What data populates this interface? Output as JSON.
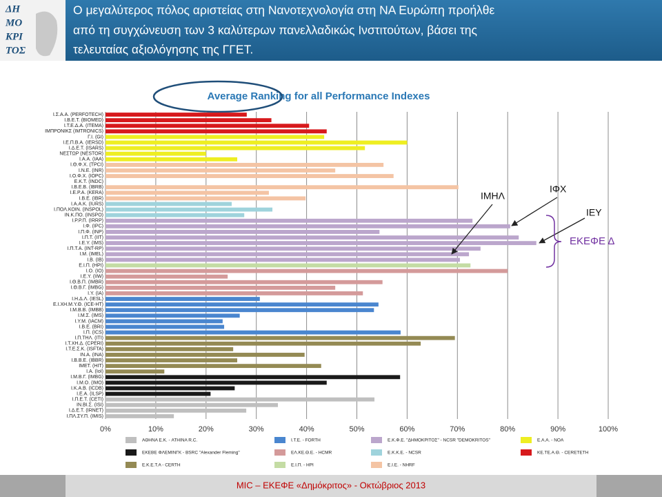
{
  "header": {
    "logo": [
      "ΔΗ",
      "ΜΟ",
      "ΚΡΙ",
      "ΤΟΣ"
    ],
    "title": [
      "Ο μεγαλύτερος πόλος αριστείας στη Νανοτεχνολογία στη ΝΑ Ευρώπη προήλθε",
      "από τη συγχώνευση των 3 καλύτερων πανελλαδικώς Ινστιτούτων, βάσει της",
      "τελευταίας αξιολόγησης της ΓΓΕΤ."
    ]
  },
  "chart_data": {
    "type": "bar",
    "orientation": "horizontal",
    "title": "Average Ranking for all Performance Indexes",
    "xlim": [
      0,
      100
    ],
    "xticks": [
      {
        "value": 0,
        "label": "0%"
      },
      {
        "value": 10,
        "label": "10%"
      },
      {
        "value": 20,
        "label": "20%"
      },
      {
        "value": 30,
        "label": "30%"
      },
      {
        "value": 40,
        "label": "40%"
      },
      {
        "value": 50,
        "label": "50%"
      },
      {
        "value": 60,
        "label": "60%"
      },
      {
        "value": 70,
        "label": "70%"
      },
      {
        "value": 80,
        "label": "80%"
      },
      {
        "value": 90,
        "label": "90%"
      },
      {
        "value": 100,
        "label": "100%"
      }
    ],
    "grid": true,
    "series": [
      {
        "name": "ΚΕ.ΤΕ.Α.Θ. - CERETETH",
        "color": "#d7191c",
        "categories": [
          "Ι.Σ.Α.Α. (PERFOTECH)",
          "Ι.Β.Ε.Τ. (BIOMED)",
          "Ι.Τ.Ε.Δ.Α. (ITEMA)",
          "ΙΜΠΡΟΝΙΚΣ (IMTRONICS)"
        ],
        "values": [
          28.1,
          33,
          40.5,
          44
        ]
      },
      {
        "name": "Ε.Α.Α. - NOA",
        "color": "#eeee22",
        "categories": [
          "Γ.Ι. (GI)",
          "Ι.Ε.Π.Β.Α. (IERSD)",
          "Ι.Δ.Ε.Τ. (ISARS)",
          "ΝΕΣΤΩΡ (NESTOR)",
          "Ι.Α.Α. (IAA)"
        ],
        "values": [
          43.5,
          60,
          51.6,
          20,
          26.2
        ]
      },
      {
        "name": "Ε.Ι.Ε. - NHRF",
        "color": "#f4c4a4",
        "categories": [
          "Ι.Θ.Φ.Χ. (TPCI)",
          "Ι.Ν.Ε. (INR)",
          "Ι.Ο.Φ.Χ. (IOPC)",
          "Ε.Κ.Τ. (INDC)",
          "Ι.Β.Ε.Β. (IBRB)",
          "Ι.Ε.Ρ.Α. (KERA)",
          "Ι.Β.Ε. (IBR)"
        ],
        "values": [
          55.3,
          45.7,
          57.3,
          0,
          70.2,
          32.5,
          39.8
        ]
      },
      {
        "name": "Ε.Κ.Κ.Ε. - NCSR",
        "color": "#9fd3dc",
        "categories": [
          "Ι.Α.Α.Κ. (IURS)",
          "Ι.ΠΟΛ.ΚΟΙΝ. (INSPOL)",
          "ΙΝ.Κ.ΠΟ. (INSPO)"
        ],
        "values": [
          25.1,
          33.2,
          27.6
        ]
      },
      {
        "name": "Ε.Κ.Φ.Ε. \"ΔΗΜΟΚΡΙΤΟΣ\" - NCSR \"DEMOKRITOS\"",
        "color": "#bba6cc",
        "categories": [
          "Ι.Ρ.Ρ.Π. (IRRP)",
          "Ι.Φ. (IPC)",
          "Ι.Π.Φ. (INP)",
          "Ι.Π.Τ. (IIT)",
          "Ι.Ε.Υ. (IMS)",
          "Ι.Π.Τ.Α. (INT-RP)",
          "Ι.Μ. (IMEL)",
          "Ι.Β. (IB)"
        ],
        "values": [
          73,
          80.5,
          54.5,
          82.2,
          85.7,
          74.6,
          72.3,
          70.5
        ]
      },
      {
        "name": "Ε.Ι.Π. - HPI",
        "color": "#c4dca4",
        "categories": [
          "Ε.Ι.Π. (HPI)"
        ],
        "values": [
          72.6
        ]
      },
      {
        "name": "ΕΛ.ΚΕ.Θ.Ε. - HCMR",
        "color": "#d49a9a",
        "categories": [
          "Ι.Ο. (IO)",
          "Ι.Ε.Υ. (IIW)",
          "Ι.Θ.Β.Π. (IMBR)",
          "Ι.Θ.Β.Γ. (IMBG)",
          "Ι.Υ. (IA)"
        ],
        "values": [
          80,
          24.3,
          55.1,
          45.7,
          51.2
        ]
      },
      {
        "name": "Ι.Τ.Ε. - FORTH",
        "color": "#4a86cf",
        "categories": [
          "Ι.Η.Δ.Λ. (IESL)",
          "Ε.Ι.ΧΗ.Μ.Υ.Θ. (ICE-HT)",
          "Ι.Μ.Β.Β. (IMBB)",
          "Ι.Μ.Σ. (IMS)",
          "Ι.Υ.Μ. (IACM)",
          "Ι.Β.Ε. (BRI)",
          "Ι.Π. (ICS)"
        ],
        "values": [
          30.7,
          54.3,
          53.4,
          26.7,
          23.3,
          23.6,
          58.7
        ]
      },
      {
        "name": "Ε.Κ.Ε.Τ.Α - CERTH",
        "color": "#948a54",
        "categories": [
          "Ι.Π.ΤΗΛ. (ITI)",
          "Ι.Τ.ΧΗ.Δ. (CPERI)",
          "Ι.Τ.Ε.Σ.Κ. (ISFTA)",
          "ΙΝ.Α. (INA)",
          "Ι.Β.Β.Ε. (IBBR)",
          "ΙΜΕΤ. (HIT)",
          "Ι.Α. (IoI)"
        ],
        "values": [
          69.5,
          62.7,
          25.4,
          39.6,
          26.2,
          42.9,
          11.7
        ]
      },
      {
        "name": "ΕΚΕΒΕ ΦΛΕΜΙΝΓΚ - BSRC \"Alexander Fleming\"",
        "color": "#1a1a1a",
        "categories": [
          "Ι.Μ.Β.Γ. (IMBG)",
          "Ι.Μ.Ο. (IMO)",
          "Ι.Κ.Α.Β. (ICDB)",
          "Ι.Ε.Α. (ILSP)"
        ],
        "values": [
          58.6,
          44,
          25.7,
          20.9
        ]
      },
      {
        "name": "ΑΘΗΝΑ Ε.Κ. - ATHINA R.C.",
        "color": "#bfbfbf",
        "categories": [
          "Ι.Π.Ε.Τ. (CETI)",
          "ΙΝ.ΒΙ.Σ. (ISI)",
          "Ι.Δ.Ε.Τ. (IRNET)",
          "Ι.ΠΛ.ΣΥ.Π. (IMIS)"
        ],
        "values": [
          53.5,
          34.3,
          28,
          13.6
        ]
      }
    ],
    "annotations": [
      "ΙΜΗΛ",
      "ΙΦΧ",
      "ΙΕΥ",
      "ΕΚΕΦΕ Δ"
    ]
  },
  "footer": "MIC – ΕΚΕΦΕ «Δημόκριτος» - Οκτώβριος 2013"
}
